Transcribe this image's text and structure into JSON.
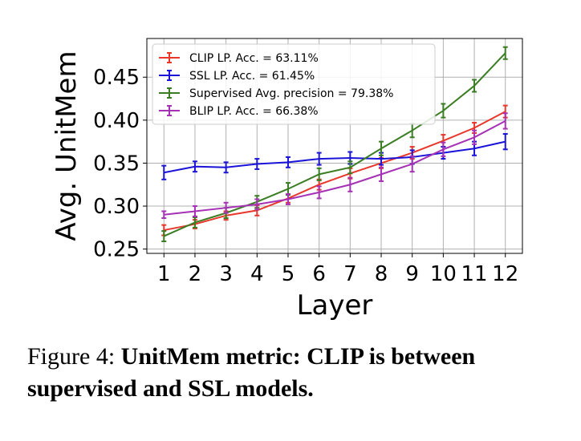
{
  "chart_data": {
    "type": "line",
    "xlabel": "Layer",
    "ylabel": "Avg. UnitMem",
    "x": [
      1,
      2,
      3,
      4,
      5,
      6,
      7,
      8,
      9,
      10,
      11,
      12
    ],
    "xlim": [
      0.45,
      12.55
    ],
    "ylim": [
      0.245,
      0.495
    ],
    "yticks": [
      0.25,
      0.3,
      0.35,
      0.4,
      0.45
    ],
    "ytick_labels": [
      "0.25",
      "0.30",
      "0.35",
      "0.40",
      "0.45"
    ],
    "xtick_labels": [
      "1",
      "2",
      "3",
      "4",
      "5",
      "6",
      "7",
      "8",
      "9",
      "10",
      "11",
      "12"
    ],
    "grid": true,
    "legend_position": "upper-left",
    "series": [
      {
        "name": "CLIP LP. Acc. = 63.11%",
        "color": "#e8372b",
        "values": [
          0.272,
          0.279,
          0.289,
          0.295,
          0.309,
          0.325,
          0.338,
          0.35,
          0.362,
          0.376,
          0.391,
          0.41
        ],
        "errors": [
          0.006,
          0.005,
          0.005,
          0.006,
          0.005,
          0.006,
          0.006,
          0.006,
          0.007,
          0.007,
          0.006,
          0.007
        ]
      },
      {
        "name": "SSL LP. Acc. = 61.45%",
        "color": "#1a14d8",
        "values": [
          0.339,
          0.346,
          0.345,
          0.349,
          0.351,
          0.355,
          0.356,
          0.355,
          0.357,
          0.362,
          0.367,
          0.375
        ],
        "errors": [
          0.008,
          0.006,
          0.006,
          0.006,
          0.006,
          0.007,
          0.007,
          0.007,
          0.008,
          0.007,
          0.008,
          0.009
        ]
      },
      {
        "name": "Supervised Avg. precision = 79.38%",
        "color": "#3a7d23",
        "values": [
          0.265,
          0.281,
          0.292,
          0.305,
          0.32,
          0.337,
          0.345,
          0.367,
          0.388,
          0.411,
          0.44,
          0.478
        ],
        "errors": [
          0.006,
          0.006,
          0.006,
          0.007,
          0.007,
          0.007,
          0.007,
          0.008,
          0.008,
          0.008,
          0.007,
          0.007
        ]
      },
      {
        "name": "BLIP LP. Acc. = 66.38%",
        "color": "#a531b5",
        "values": [
          0.29,
          0.294,
          0.298,
          0.302,
          0.308,
          0.316,
          0.325,
          0.337,
          0.349,
          0.366,
          0.38,
          0.399
        ],
        "errors": [
          0.004,
          0.006,
          0.006,
          0.006,
          0.006,
          0.007,
          0.008,
          0.008,
          0.009,
          0.008,
          0.008,
          0.009
        ]
      }
    ]
  },
  "caption": {
    "lead": "Figure 4: ",
    "bold": "UnitMem metric: CLIP is between supervised and SSL models."
  }
}
